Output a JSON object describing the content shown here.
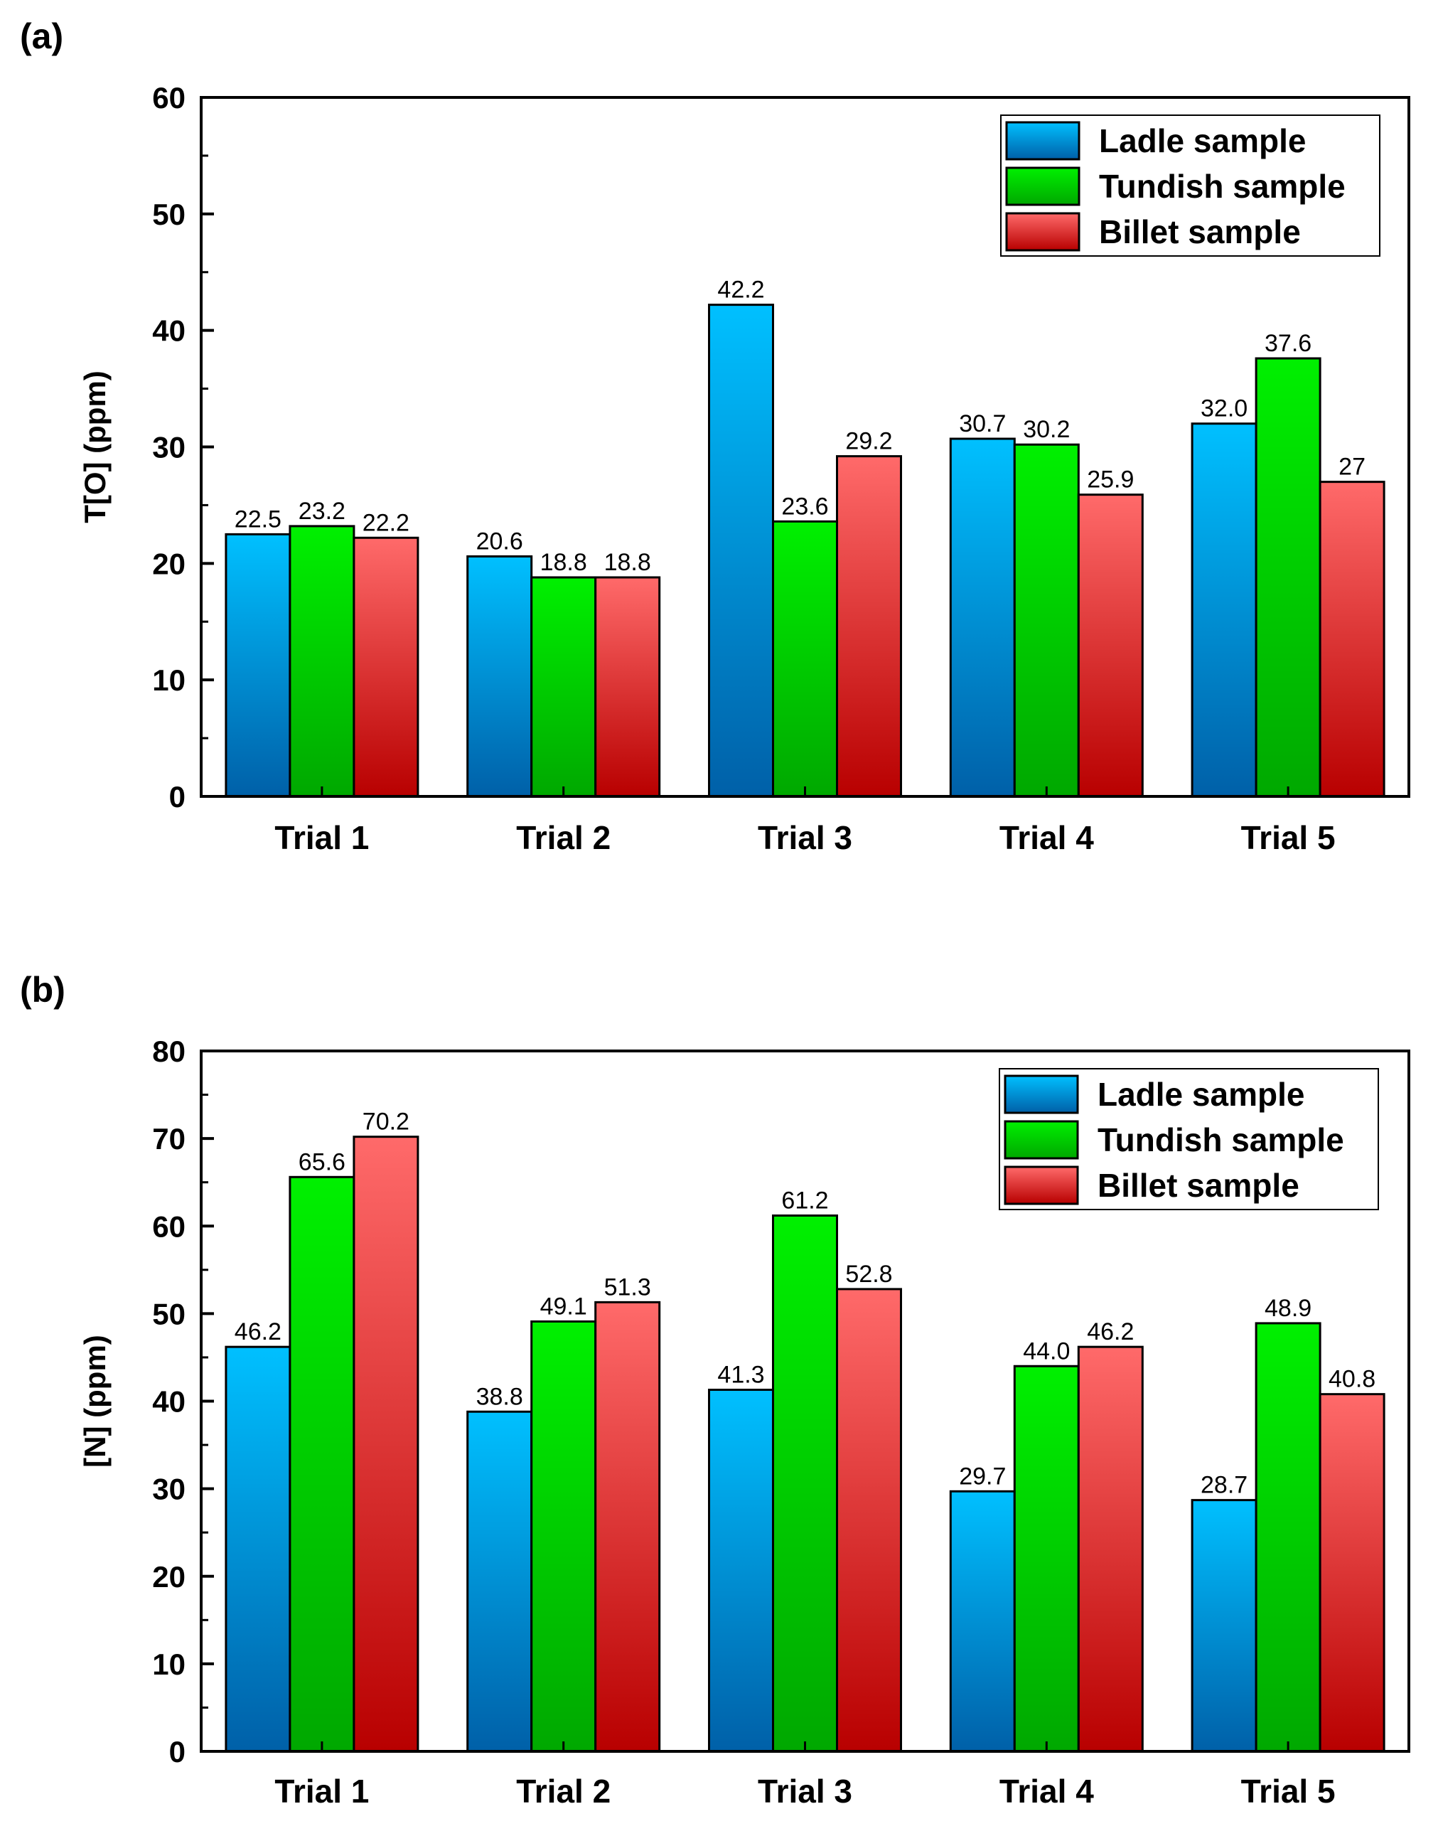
{
  "colors": {
    "ladle_top": "#00c0ff",
    "ladle_bottom": "#0060a8",
    "tundish_top": "#00f000",
    "tundish_bottom": "#00a800",
    "billet_top": "#ff6a6a",
    "billet_bottom": "#b80000",
    "axis": "#000000"
  },
  "chart_data": [
    {
      "panel": "(a)",
      "type": "bar",
      "ylabel": "T[O] (ppm)",
      "ylim": [
        0,
        60
      ],
      "yticks": [
        0,
        10,
        20,
        30,
        40,
        50,
        60
      ],
      "categories": [
        "Trial 1",
        "Trial 2",
        "Trial 3",
        "Trial 4",
        "Trial 5"
      ],
      "legend_position": "top-right",
      "series": [
        {
          "name": "Ladle sample",
          "key": "ladle",
          "values": [
            22.5,
            20.6,
            42.2,
            30.7,
            32.0
          ],
          "labels": [
            "22.5",
            "20.6",
            "42.2",
            "30.7",
            "32.0"
          ]
        },
        {
          "name": "Tundish sample",
          "key": "tundish",
          "values": [
            23.2,
            18.8,
            23.6,
            30.2,
            37.6
          ],
          "labels": [
            "23.2",
            "18.8",
            "23.6",
            "30.2",
            "37.6"
          ]
        },
        {
          "name": "Billet sample",
          "key": "billet",
          "values": [
            22.2,
            18.8,
            29.2,
            25.9,
            27
          ],
          "labels": [
            "22.2",
            "18.8",
            "29.2",
            "25.9",
            "27"
          ]
        }
      ]
    },
    {
      "panel": "(b)",
      "type": "bar",
      "ylabel": "[N] (ppm)",
      "ylim": [
        0,
        80
      ],
      "yticks": [
        0,
        10,
        20,
        30,
        40,
        50,
        60,
        70,
        80
      ],
      "categories": [
        "Trial 1",
        "Trial 2",
        "Trial 3",
        "Trial 4",
        "Trial 5"
      ],
      "legend_position": "top-right",
      "series": [
        {
          "name": "Ladle sample",
          "key": "ladle",
          "values": [
            46.2,
            38.8,
            41.3,
            29.7,
            28.7
          ],
          "labels": [
            "46.2",
            "38.8",
            "41.3",
            "29.7",
            "28.7"
          ]
        },
        {
          "name": "Tundish sample",
          "key": "tundish",
          "values": [
            65.6,
            49.1,
            61.2,
            44.0,
            48.9
          ],
          "labels": [
            "65.6",
            "49.1",
            "61.2",
            "44.0",
            "48.9"
          ]
        },
        {
          "name": "Billet sample",
          "key": "billet",
          "values": [
            70.2,
            51.3,
            52.8,
            46.2,
            40.8
          ],
          "labels": [
            "70.2",
            "51.3",
            "52.8",
            "46.2",
            "40.8"
          ]
        }
      ]
    }
  ]
}
